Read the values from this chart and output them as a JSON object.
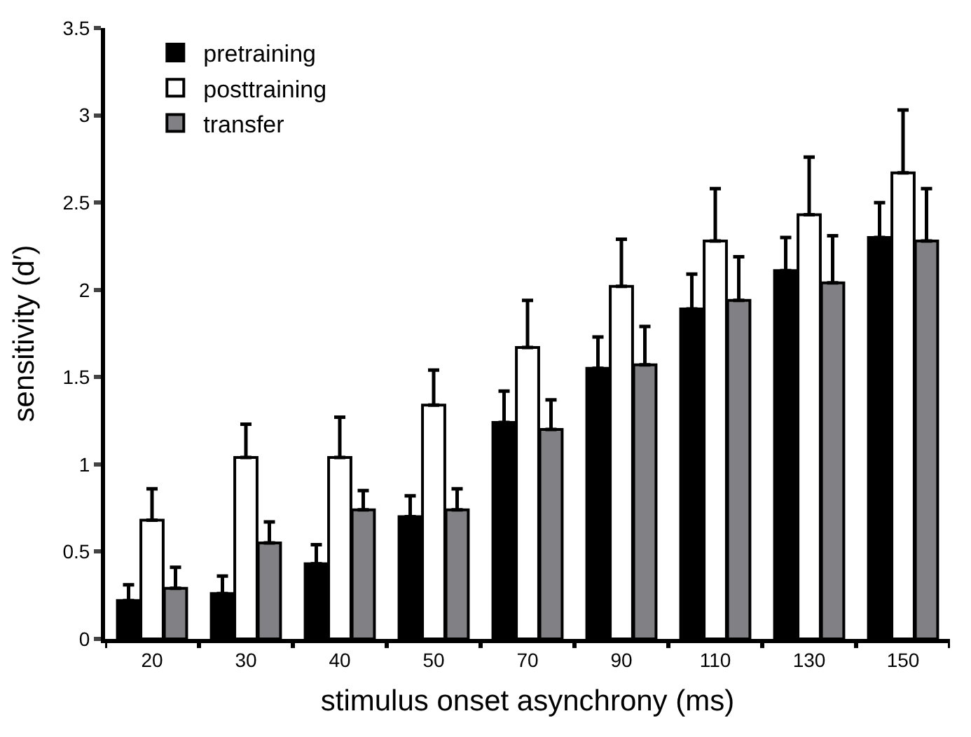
{
  "chart_data": {
    "type": "bar",
    "xlabel": "stimulus onset asynchrony (ms)",
    "ylabel": "sensitivity (d′)",
    "categories": [
      "20",
      "30",
      "40",
      "50",
      "70",
      "90",
      "110",
      "130",
      "150"
    ],
    "series": [
      {
        "name": "pretraining",
        "color": "#000000",
        "values": [
          0.22,
          0.26,
          0.43,
          0.7,
          1.24,
          1.55,
          1.89,
          2.11,
          2.3
        ],
        "errors": [
          [
            0.22,
            0.31
          ],
          [
            0.26,
            0.36
          ],
          [
            0.43,
            0.54
          ],
          [
            0.7,
            0.82
          ],
          [
            1.24,
            1.42
          ],
          [
            1.55,
            1.73
          ],
          [
            1.89,
            2.09
          ],
          [
            2.11,
            2.3
          ],
          [
            2.3,
            2.5
          ]
        ]
      },
      {
        "name": "posttraining",
        "color": "#ffffff",
        "values": [
          0.68,
          1.04,
          1.04,
          1.34,
          1.67,
          2.02,
          2.28,
          2.43,
          2.67
        ],
        "errors": [
          [
            0.68,
            0.86
          ],
          [
            1.04,
            1.23
          ],
          [
            1.04,
            1.27
          ],
          [
            1.34,
            1.54
          ],
          [
            1.67,
            1.94
          ],
          [
            2.02,
            2.29
          ],
          [
            2.28,
            2.58
          ],
          [
            2.43,
            2.76
          ],
          [
            2.67,
            3.03
          ]
        ]
      },
      {
        "name": "transfer",
        "color": "#808085",
        "values": [
          0.29,
          0.55,
          0.74,
          0.74,
          1.2,
          1.57,
          1.94,
          2.04,
          2.28
        ],
        "errors": [
          [
            0.29,
            0.41
          ],
          [
            0.55,
            0.67
          ],
          [
            0.74,
            0.85
          ],
          [
            0.74,
            0.86
          ],
          [
            1.2,
            1.37
          ],
          [
            1.57,
            1.79
          ],
          [
            1.94,
            2.19
          ],
          [
            2.04,
            2.31
          ],
          [
            2.28,
            2.58
          ]
        ]
      }
    ],
    "ylim": [
      0,
      3.5
    ],
    "yticks": [
      0,
      0.5,
      1,
      1.5,
      2,
      2.5,
      3,
      3.5
    ],
    "legend": "top left"
  }
}
